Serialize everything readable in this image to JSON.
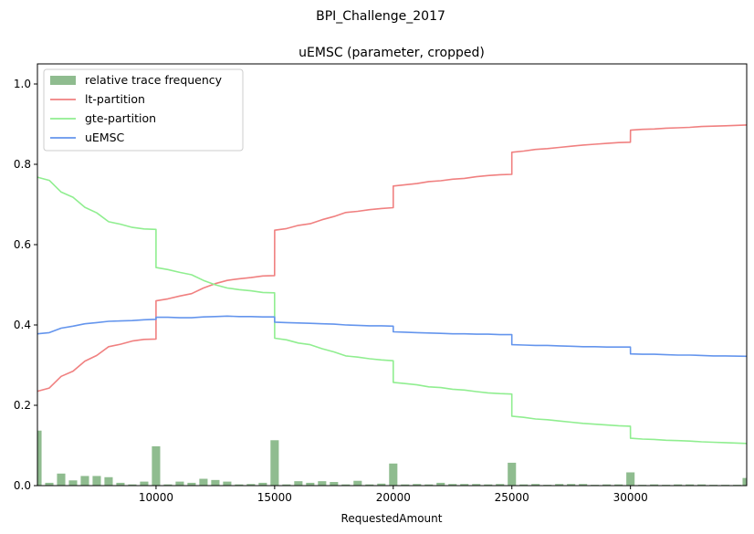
{
  "chart_data": {
    "type": "line",
    "suptitle": "BPI_Challenge_2017",
    "title": "uEMSC (parameter, cropped)",
    "xlabel": "RequestedAmount",
    "ylabel": "",
    "xlim": [
      5000,
      34900
    ],
    "ylim": [
      0,
      1.05
    ],
    "xticks": [
      10000,
      15000,
      20000,
      25000,
      30000
    ],
    "yticks": [
      0.0,
      0.2,
      0.4,
      0.6,
      0.8,
      1.0
    ],
    "xtick_labels": [
      "10000",
      "15000",
      "20000",
      "25000",
      "30000"
    ],
    "ytick_labels": [
      "0.0",
      "0.2",
      "0.4",
      "0.6",
      "0.8",
      "1.0"
    ],
    "legend_position": "upper-left",
    "legend": [
      "relative trace frequency",
      "lt-partition",
      "gte-partition",
      "uEMSC"
    ],
    "colors": {
      "bars": "#8fbc8f",
      "lt": "#f08080",
      "gte": "#90ee90",
      "uemsc": "#6495ed"
    },
    "bars": {
      "name": "relative trace frequency",
      "width": 350,
      "x": [
        5000,
        5500,
        6000,
        6500,
        7000,
        7500,
        8000,
        8500,
        9000,
        9500,
        10000,
        10500,
        11000,
        11500,
        12000,
        12500,
        13000,
        13500,
        14000,
        14500,
        15000,
        15500,
        16000,
        16500,
        17000,
        17500,
        18000,
        18500,
        19000,
        19500,
        20000,
        20500,
        21000,
        21500,
        22000,
        22500,
        23000,
        23500,
        24000,
        24500,
        25000,
        25500,
        26000,
        26500,
        27000,
        27500,
        28000,
        28500,
        29000,
        29500,
        30000,
        30500,
        31000,
        31500,
        32000,
        32500,
        33000,
        33500,
        34000,
        34500,
        34900
      ],
      "values": [
        0.137,
        0.007,
        0.03,
        0.013,
        0.024,
        0.024,
        0.021,
        0.007,
        0.003,
        0.01,
        0.098,
        0.003,
        0.01,
        0.007,
        0.017,
        0.014,
        0.01,
        0.003,
        0.004,
        0.007,
        0.113,
        0.003,
        0.011,
        0.007,
        0.011,
        0.009,
        0.003,
        0.012,
        0.003,
        0.005,
        0.055,
        0.003,
        0.004,
        0.003,
        0.007,
        0.004,
        0.004,
        0.004,
        0.003,
        0.004,
        0.057,
        0.003,
        0.004,
        0.002,
        0.004,
        0.004,
        0.004,
        0.002,
        0.003,
        0.003,
        0.033,
        0.002,
        0.003,
        0.002,
        0.003,
        0.003,
        0.003,
        0.002,
        0.002,
        0.002,
        0.019
      ]
    },
    "series": [
      {
        "name": "lt-partition",
        "x": [
          5000,
          5500,
          6000,
          6500,
          7000,
          7500,
          8000,
          8500,
          9000,
          9500,
          9999,
          10000,
          10500,
          11000,
          11500,
          12000,
          12500,
          13000,
          13500,
          14000,
          14500,
          14999,
          15000,
          15500,
          16000,
          16500,
          17000,
          17500,
          18000,
          18500,
          19000,
          19500,
          19999,
          20000,
          20500,
          21000,
          21500,
          22000,
          22500,
          23000,
          23500,
          24000,
          24500,
          24999,
          25000,
          25500,
          26000,
          26500,
          27000,
          27500,
          28000,
          28500,
          29000,
          29500,
          29999,
          30000,
          30500,
          31000,
          31500,
          32000,
          32500,
          33000,
          33500,
          34000,
          34900
        ],
        "y": [
          0.235,
          0.243,
          0.272,
          0.285,
          0.31,
          0.324,
          0.346,
          0.352,
          0.36,
          0.364,
          0.365,
          0.46,
          0.465,
          0.472,
          0.478,
          0.492,
          0.503,
          0.511,
          0.515,
          0.518,
          0.522,
          0.523,
          0.636,
          0.64,
          0.648,
          0.652,
          0.662,
          0.67,
          0.68,
          0.683,
          0.687,
          0.69,
          0.692,
          0.746,
          0.749,
          0.752,
          0.757,
          0.759,
          0.763,
          0.765,
          0.769,
          0.772,
          0.774,
          0.775,
          0.83,
          0.833,
          0.837,
          0.839,
          0.842,
          0.845,
          0.848,
          0.85,
          0.852,
          0.854,
          0.855,
          0.885,
          0.887,
          0.888,
          0.89,
          0.891,
          0.892,
          0.894,
          0.895,
          0.896,
          0.898
        ]
      },
      {
        "name": "gte-partition",
        "x": [
          5000,
          5500,
          6000,
          6500,
          7000,
          7500,
          8000,
          8500,
          9000,
          9500,
          9999,
          10000,
          10500,
          11000,
          11500,
          12000,
          12500,
          13000,
          13500,
          14000,
          14500,
          14999,
          15000,
          15500,
          16000,
          16500,
          17000,
          17500,
          18000,
          18500,
          19000,
          19500,
          19999,
          20000,
          20500,
          21000,
          21500,
          22000,
          22500,
          23000,
          23500,
          24000,
          24500,
          24999,
          25000,
          25500,
          26000,
          26500,
          27000,
          27500,
          28000,
          28500,
          29000,
          29500,
          29999,
          30000,
          30500,
          31000,
          31500,
          32000,
          32500,
          33000,
          33500,
          34000,
          34900
        ],
        "y": [
          0.768,
          0.76,
          0.731,
          0.718,
          0.693,
          0.679,
          0.657,
          0.651,
          0.643,
          0.639,
          0.638,
          0.543,
          0.538,
          0.531,
          0.525,
          0.511,
          0.5,
          0.492,
          0.488,
          0.485,
          0.481,
          0.48,
          0.367,
          0.363,
          0.355,
          0.351,
          0.341,
          0.333,
          0.323,
          0.32,
          0.316,
          0.313,
          0.311,
          0.257,
          0.254,
          0.251,
          0.246,
          0.244,
          0.24,
          0.238,
          0.234,
          0.231,
          0.229,
          0.228,
          0.173,
          0.17,
          0.166,
          0.164,
          0.161,
          0.158,
          0.155,
          0.153,
          0.151,
          0.149,
          0.148,
          0.118,
          0.116,
          0.115,
          0.113,
          0.112,
          0.111,
          0.109,
          0.108,
          0.107,
          0.105
        ]
      },
      {
        "name": "uEMSC",
        "x": [
          5000,
          5500,
          6000,
          6500,
          7000,
          7500,
          8000,
          8500,
          9000,
          9500,
          9999,
          10000,
          10500,
          11000,
          11500,
          12000,
          12500,
          13000,
          13500,
          14000,
          14500,
          14999,
          15000,
          15500,
          16000,
          16500,
          17000,
          17500,
          18000,
          18500,
          19000,
          19500,
          19999,
          20000,
          20500,
          21000,
          21500,
          22000,
          22500,
          23000,
          23500,
          24000,
          24500,
          24999,
          25000,
          25500,
          26000,
          26500,
          27000,
          27500,
          28000,
          28500,
          29000,
          29500,
          29999,
          30000,
          30500,
          31000,
          31500,
          32000,
          32500,
          33000,
          33500,
          34000,
          34900
        ],
        "y": [
          0.378,
          0.381,
          0.392,
          0.397,
          0.403,
          0.406,
          0.409,
          0.41,
          0.411,
          0.413,
          0.414,
          0.419,
          0.419,
          0.418,
          0.418,
          0.42,
          0.421,
          0.422,
          0.421,
          0.421,
          0.42,
          0.42,
          0.407,
          0.406,
          0.405,
          0.404,
          0.403,
          0.402,
          0.4,
          0.399,
          0.398,
          0.398,
          0.397,
          0.383,
          0.382,
          0.381,
          0.38,
          0.379,
          0.378,
          0.378,
          0.377,
          0.377,
          0.376,
          0.376,
          0.351,
          0.35,
          0.349,
          0.349,
          0.348,
          0.347,
          0.346,
          0.346,
          0.345,
          0.345,
          0.345,
          0.328,
          0.327,
          0.327,
          0.326,
          0.325,
          0.325,
          0.324,
          0.323,
          0.323,
          0.322
        ]
      }
    ]
  }
}
